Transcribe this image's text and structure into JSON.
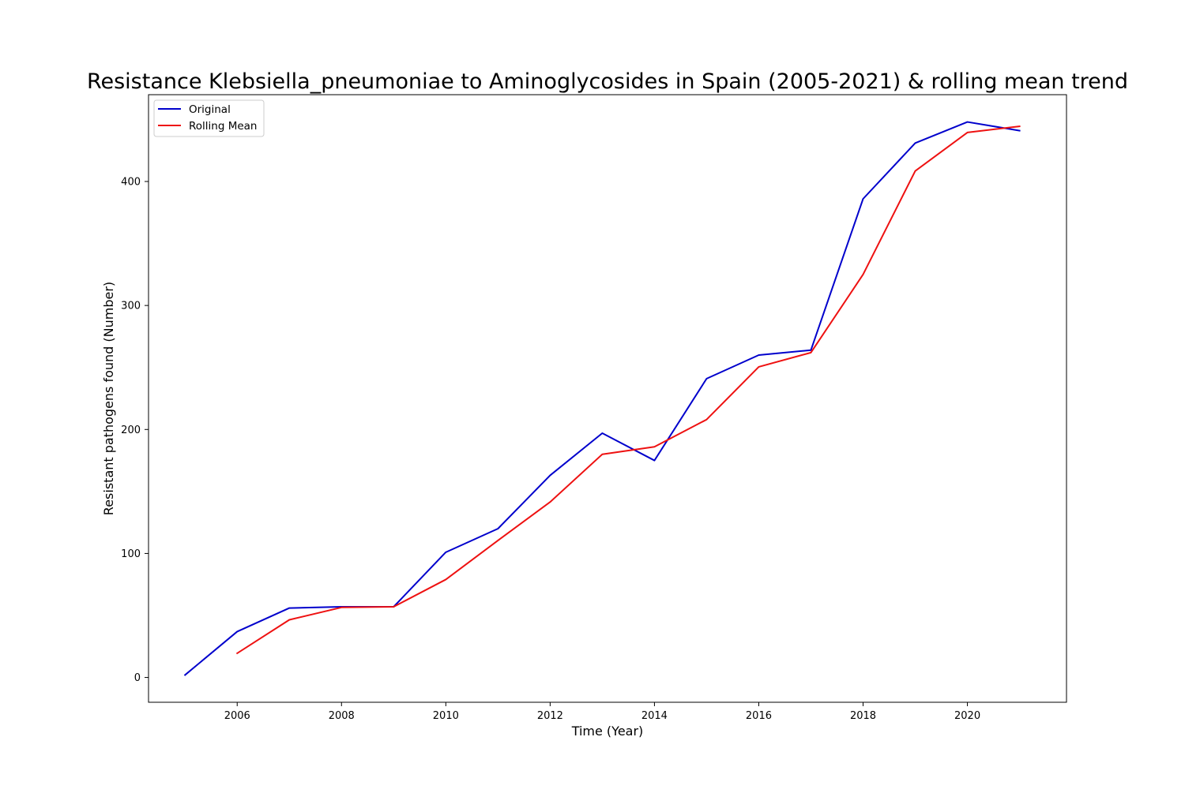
{
  "chart_data": {
    "type": "line",
    "title": "Resistance Klebsiella_pneumoniae to Aminoglycosides in Spain (2005-2021) & rolling mean trend",
    "xlabel": "Time (Year)",
    "ylabel": "Resistant pathogens found (Number)",
    "xlim": [
      2004.3,
      2021.9
    ],
    "ylim": [
      -20,
      470
    ],
    "xticks": [
      2006,
      2008,
      2010,
      2012,
      2014,
      2016,
      2018,
      2020
    ],
    "yticks": [
      0,
      100,
      200,
      300,
      400
    ],
    "grid": false,
    "legend_position": "upper left",
    "series": [
      {
        "name": "Original",
        "color": "#0000cc",
        "x": [
          2005,
          2006,
          2007,
          2008,
          2009,
          2010,
          2011,
          2012,
          2013,
          2014,
          2015,
          2016,
          2017,
          2018,
          2019,
          2020,
          2021
        ],
        "values": [
          2,
          37,
          56,
          57,
          57,
          101,
          120,
          163,
          197,
          175,
          241,
          260,
          264,
          386,
          431,
          448,
          441
        ]
      },
      {
        "name": "Rolling Mean",
        "color": "#ee1111",
        "x": [
          2006,
          2007,
          2008,
          2009,
          2010,
          2011,
          2012,
          2013,
          2014,
          2015,
          2016,
          2017,
          2018,
          2019,
          2020,
          2021
        ],
        "values": [
          19.5,
          46.5,
          56.5,
          57,
          79,
          110.5,
          141.5,
          180,
          186,
          208,
          250.5,
          262,
          325,
          408.5,
          439.5,
          444.5
        ]
      }
    ]
  }
}
